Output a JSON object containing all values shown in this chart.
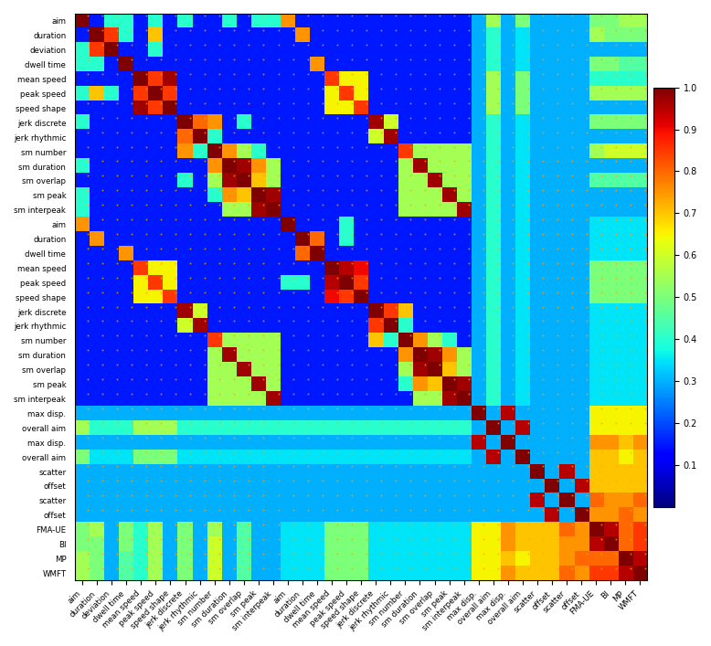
{
  "row_labels": [
    "aim",
    "duration",
    "deviation",
    "dwell time",
    "mean speed",
    "peak speed",
    "speed shape",
    "jerk discrete",
    "jerk rhythmic",
    "sm number",
    "sm duration",
    "sm overlap",
    "sm peak",
    "sm interpeak",
    "aim",
    "duration",
    "dwell time",
    "mean speed",
    "peak speed",
    "speed shape",
    "jerk discrete",
    "jerk rhythmic",
    "sm number",
    "sm duration",
    "sm overlap",
    "sm peak",
    "sm interpeak",
    "max disp.",
    "overall aim",
    "max disp.",
    "overall aim",
    "scatter",
    "offset",
    "scatter",
    "offset",
    "FMA-UE",
    "BI",
    "MP",
    "WMFT"
  ],
  "col_labels": [
    "aim",
    "duration",
    "deviation",
    "dwell time",
    "mean speed",
    "peak speed",
    "speed shape",
    "jerk discrete",
    "jerk rhythmic",
    "sm number",
    "sm duration",
    "sm overlap",
    "sm peak",
    "sm interpeak",
    "aim",
    "duration",
    "dwell time",
    "mean speed",
    "peak speed",
    "speed shape",
    "jerk discrete",
    "jerk rhythmic",
    "sm number",
    "sm duration",
    "sm overlap",
    "sm peak",
    "sm interpeak",
    "max disp.",
    "overall aim",
    "max disp.",
    "overall aim",
    "scatter",
    "offset",
    "scatter",
    "offset",
    "FMA-UE",
    "BI",
    "MP",
    "WMFT"
  ],
  "colormap_name": "jet",
  "vmin": 0.0,
  "vmax": 1.0,
  "colorbar_ticks": [
    0.1,
    0.2,
    0.3,
    0.4,
    0.5,
    0.6,
    0.7,
    0.8,
    0.9,
    1.0
  ],
  "figsize": [
    7.78,
    7.07
  ],
  "dpi": 100,
  "background_color": "#ffffff"
}
